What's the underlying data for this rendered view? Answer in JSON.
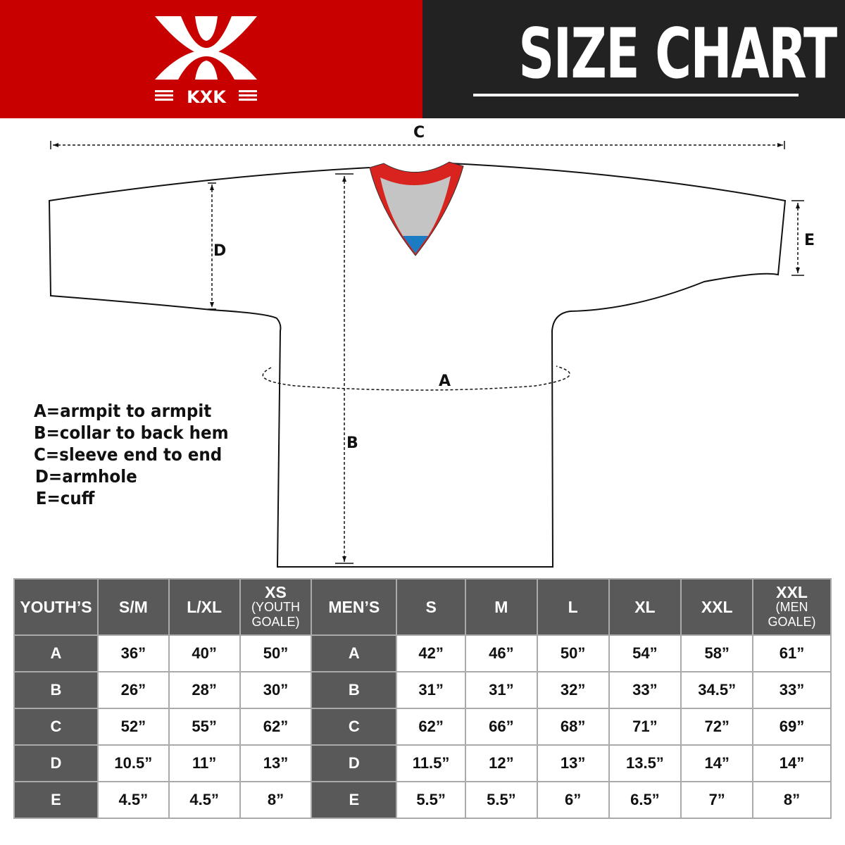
{
  "brand": {
    "logo_text": "KXK",
    "color": "#c80000"
  },
  "title": "SIZE CHART",
  "diagram": {
    "labels": {
      "a": "A",
      "b": "B",
      "c": "C",
      "d": "D",
      "e": "E"
    },
    "legend": [
      "A=armpit to armpit",
      "B=collar to back hem",
      "C=sleeve end to end",
      "D=armhole",
      "E=cuff"
    ]
  },
  "table": {
    "headers": [
      {
        "main": "YOUTH’S"
      },
      {
        "main": "S/M"
      },
      {
        "main": "L/XL"
      },
      {
        "main": "XS",
        "sub": "(YOUTH GOALE)"
      },
      {
        "main": "MEN’S"
      },
      {
        "main": "S"
      },
      {
        "main": "M"
      },
      {
        "main": "L"
      },
      {
        "main": "XL"
      },
      {
        "main": "XXL"
      },
      {
        "main": "XXL",
        "sub": "(MEN GOALE)"
      }
    ],
    "rows": [
      {
        "youth_key": "A",
        "youth": [
          "36”",
          "40”",
          "50”"
        ],
        "men_key": "A",
        "men": [
          "42”",
          "46”",
          "50”",
          "54”",
          "58”",
          "61”"
        ]
      },
      {
        "youth_key": "B",
        "youth": [
          "26”",
          "28”",
          "30”"
        ],
        "men_key": "B",
        "men": [
          "31”",
          "31”",
          "32”",
          "33”",
          "34.5”",
          "33”"
        ]
      },
      {
        "youth_key": "C",
        "youth": [
          "52”",
          "55”",
          "62”"
        ],
        "men_key": "C",
        "men": [
          "62”",
          "66”",
          "68”",
          "71”",
          "72”",
          "69”"
        ]
      },
      {
        "youth_key": "D",
        "youth": [
          "10.5”",
          "11”",
          "13”"
        ],
        "men_key": "D",
        "men": [
          "11.5”",
          "12”",
          "13”",
          "13.5”",
          "14”",
          "14”"
        ]
      },
      {
        "youth_key": "E",
        "youth": [
          "4.5”",
          "4.5”",
          "8”"
        ],
        "men_key": "E",
        "men": [
          "5.5”",
          "5.5”",
          "6”",
          "6.5”",
          "7”",
          "8”"
        ]
      }
    ]
  }
}
